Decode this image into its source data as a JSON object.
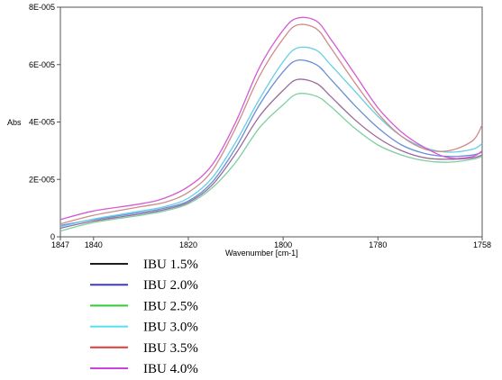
{
  "chart_data": {
    "type": "line",
    "xlabel": "Wavenumber [cm-1]",
    "ylabel": "Abs",
    "xlim": [
      1847,
      1758
    ],
    "ylim": [
      0,
      8e-05
    ],
    "x_ticks": [
      {
        "value": 1847,
        "label": "1847"
      },
      {
        "value": 1840,
        "label": "1840"
      },
      {
        "value": 1820,
        "label": "1820"
      },
      {
        "value": 1800,
        "label": "1800"
      },
      {
        "value": 1780,
        "label": "1780"
      },
      {
        "value": 1758,
        "label": "1758"
      }
    ],
    "y_ticks": [
      {
        "value": 0,
        "label": "0"
      },
      {
        "value": 2e-05,
        "label": "2E-005"
      },
      {
        "value": 4e-05,
        "label": "4E-005"
      },
      {
        "value": 6e-05,
        "label": "6E-005"
      },
      {
        "value": 8e-05,
        "label": "8E-005"
      }
    ],
    "legend_position": "below",
    "series": [
      {
        "name": "IBU 1.5%",
        "legend_color": "#1f1f1f",
        "line_color": "#6a8fd6",
        "x": [
          1847,
          1840,
          1830,
          1825,
          1820,
          1815,
          1810,
          1805,
          1800,
          1797,
          1793,
          1790,
          1785,
          1780,
          1775,
          1770,
          1765,
          1760,
          1758
        ],
        "y": [
          4e-06,
          6e-06,
          8.5e-06,
          1e-05,
          1.25e-05,
          1.9e-05,
          3.1e-05,
          4.6e-05,
          5.75e-05,
          6.15e-05,
          6e-05,
          5.5e-05,
          4.6e-05,
          3.8e-05,
          3.2e-05,
          2.9e-05,
          2.8e-05,
          2.85e-05,
          2.95e-05
        ]
      },
      {
        "name": "IBU 2.0%",
        "legend_color": "#3a3acc",
        "line_color": "#9a6a9a",
        "x": [
          1847,
          1840,
          1830,
          1825,
          1820,
          1815,
          1810,
          1805,
          1800,
          1797,
          1793,
          1790,
          1785,
          1780,
          1775,
          1770,
          1765,
          1760,
          1758
        ],
        "y": [
          3e-06,
          5.5e-06,
          8e-06,
          9.5e-06,
          1.2e-05,
          1.8e-05,
          2.9e-05,
          4.2e-05,
          5.1e-05,
          5.48e-05,
          5.35e-05,
          4.9e-05,
          4.1e-05,
          3.45e-05,
          3e-05,
          2.75e-05,
          2.7e-05,
          2.75e-05,
          2.85e-05
        ]
      },
      {
        "name": "IBU 2.5%",
        "legend_color": "#33cc33",
        "line_color": "#7fcf9f",
        "x": [
          1847,
          1840,
          1830,
          1825,
          1820,
          1815,
          1810,
          1805,
          1800,
          1797,
          1793,
          1790,
          1785,
          1780,
          1775,
          1770,
          1765,
          1760,
          1758
        ],
        "y": [
          2e-06,
          5e-06,
          7.5e-06,
          9e-06,
          1.15e-05,
          1.7e-05,
          2.6e-05,
          3.8e-05,
          4.6e-05,
          4.98e-05,
          4.9e-05,
          4.55e-05,
          3.8e-05,
          3.2e-05,
          2.85e-05,
          2.65e-05,
          2.6e-05,
          2.7e-05,
          2.8e-05
        ]
      },
      {
        "name": "IBU 3.0%",
        "legend_color": "#55e0ee",
        "line_color": "#66cfe6",
        "x": [
          1847,
          1840,
          1830,
          1825,
          1820,
          1815,
          1810,
          1805,
          1800,
          1797,
          1793,
          1790,
          1785,
          1780,
          1775,
          1770,
          1765,
          1760,
          1758
        ],
        "y": [
          3.5e-06,
          6.2e-06,
          9e-06,
          1.05e-05,
          1.35e-05,
          2.05e-05,
          3.3e-05,
          4.8e-05,
          6.1e-05,
          6.58e-05,
          6.5e-05,
          6e-05,
          5.1e-05,
          4.2e-05,
          3.5e-05,
          3.1e-05,
          2.95e-05,
          3.05e-05,
          3.25e-05
        ]
      },
      {
        "name": "IBU 3.5%",
        "legend_color": "#e03a3a",
        "line_color": "#cf8a8a",
        "x": [
          1847,
          1840,
          1830,
          1825,
          1820,
          1815,
          1810,
          1805,
          1800,
          1797,
          1793,
          1790,
          1785,
          1780,
          1775,
          1770,
          1765,
          1760,
          1758
        ],
        "y": [
          4.5e-06,
          7.5e-06,
          1.05e-05,
          1.2e-05,
          1.55e-05,
          2.3e-05,
          3.8e-05,
          5.6e-05,
          6.9e-05,
          7.38e-05,
          7.25e-05,
          6.6e-05,
          5.4e-05,
          4.3e-05,
          3.5e-05,
          3.05e-05,
          3e-05,
          3.35e-05,
          3.9e-05
        ]
      },
      {
        "name": "IBU 4.0%",
        "legend_color": "#cc44dd",
        "line_color": "#d35ad3",
        "x": [
          1847,
          1840,
          1830,
          1825,
          1820,
          1815,
          1810,
          1805,
          1800,
          1797,
          1793,
          1790,
          1785,
          1780,
          1775,
          1770,
          1765,
          1760,
          1758
        ],
        "y": [
          6e-06,
          9e-06,
          1.15e-05,
          1.35e-05,
          1.75e-05,
          2.5e-05,
          4e-05,
          5.9e-05,
          7.2e-05,
          7.62e-05,
          7.52e-05,
          6.9e-05,
          5.7e-05,
          4.5e-05,
          3.65e-05,
          3.1e-05,
          2.75e-05,
          2.8e-05,
          3e-05
        ]
      }
    ]
  }
}
